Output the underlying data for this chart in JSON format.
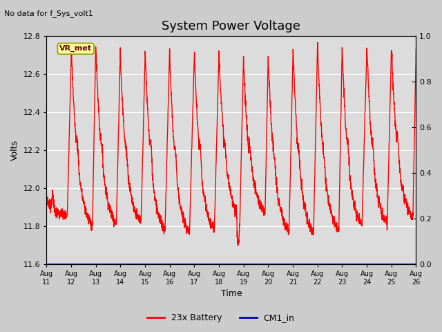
{
  "title": "System Power Voltage",
  "top_left_text": "No data for f_Sys_volt1",
  "xlabel": "Time",
  "ylabel": "Volts",
  "ylim": [
    11.6,
    12.8
  ],
  "ylim2": [
    0.0,
    1.0
  ],
  "yticks": [
    11.6,
    11.8,
    12.0,
    12.2,
    12.4,
    12.6,
    12.8
  ],
  "yticks2": [
    0.0,
    0.2,
    0.4,
    0.6,
    0.8,
    1.0
  ],
  "x_tick_labels": [
    "Aug 11",
    "Aug 12",
    "Aug 13",
    "Aug 14",
    "Aug 15",
    "Aug 16",
    "Aug 17",
    "Aug 18",
    "Aug 19",
    "Aug 20",
    "Aug 21",
    "Aug 22",
    "Aug 23",
    "Aug 24",
    "Aug 25",
    "Aug 26"
  ],
  "line_color": "#FF0000",
  "line_color2": "#0000BB",
  "line_width": 1.0,
  "fig_bg_color": "#CCCCCC",
  "plot_bg_color": "#DCDCDC",
  "legend_entries": [
    "23x Battery",
    "CM1_in"
  ],
  "legend_colors": [
    "#FF0000",
    "#0000BB"
  ],
  "annotation_text": "VR_met",
  "annotation_bg": "#FFFFA0",
  "annotation_border": "#999900",
  "title_fontsize": 13,
  "label_fontsize": 9,
  "tick_fontsize": 8,
  "grid_color": "#FFFFFF",
  "num_days": 15,
  "num_points_per_day": 150
}
